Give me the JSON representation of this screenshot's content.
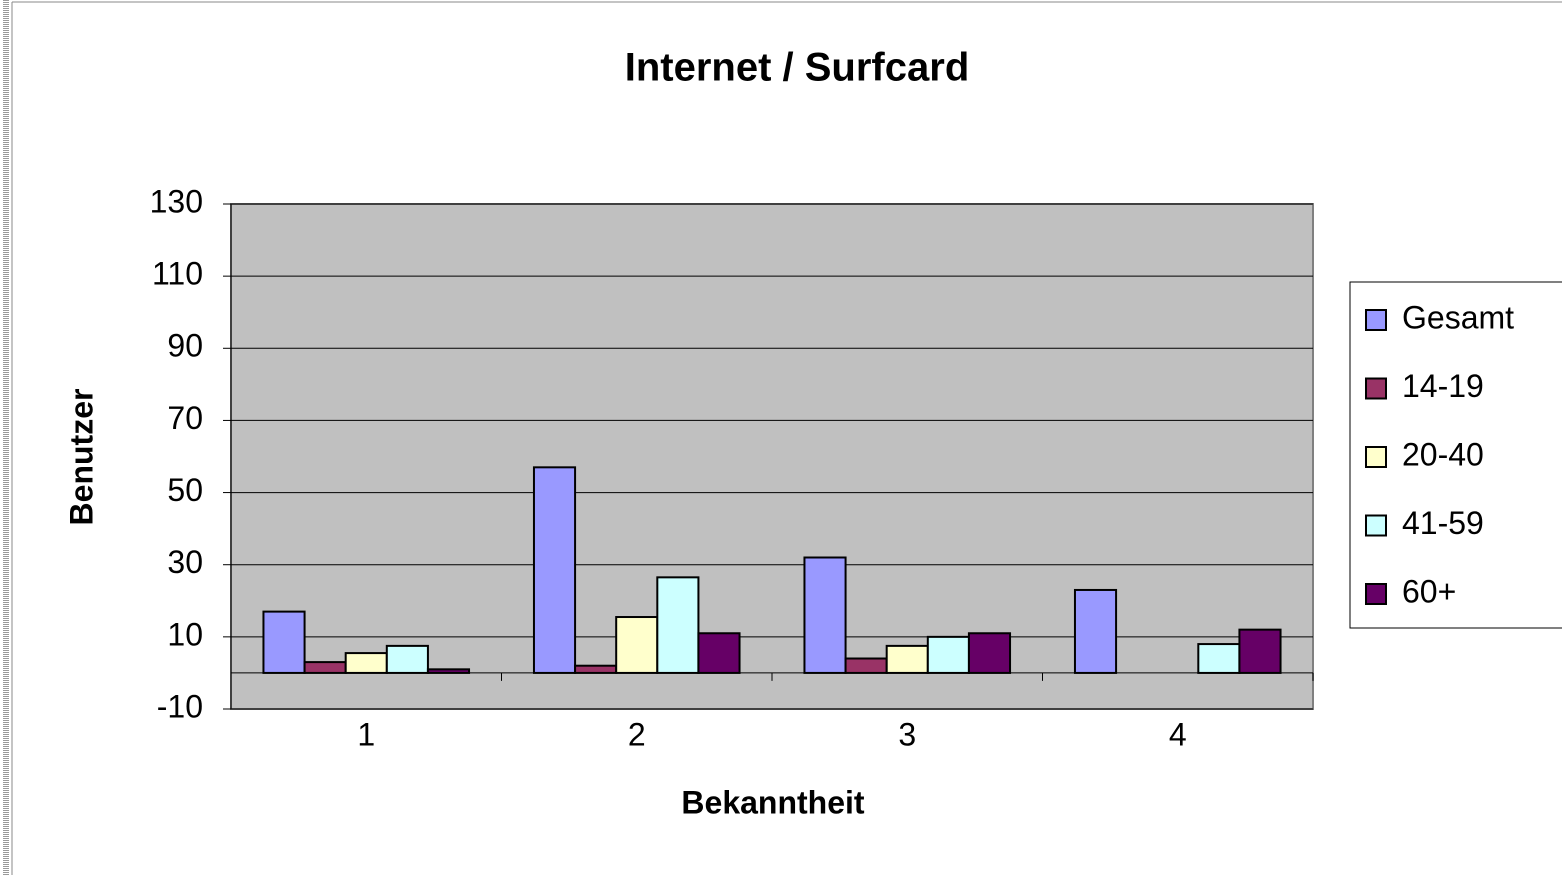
{
  "chart_data": {
    "type": "bar",
    "title": "Internet / Surfcard",
    "x_label": "Bekanntheit",
    "y_label": "Benutzer",
    "categories": [
      "1",
      "2",
      "3",
      "4"
    ],
    "series": [
      {
        "name": "Gesamt",
        "color": "#9999ff",
        "values": [
          17,
          57,
          32,
          23
        ]
      },
      {
        "name": "14-19",
        "color": "#993366",
        "values": [
          3,
          2,
          4,
          0
        ]
      },
      {
        "name": "20-40",
        "color": "#ffffcc",
        "values": [
          5.5,
          15.5,
          7.5,
          0
        ]
      },
      {
        "name": "41-59",
        "color": "#ccffff",
        "values": [
          7.5,
          26.5,
          10,
          8
        ]
      },
      {
        "name": "60+",
        "color": "#660066",
        "values": [
          1,
          11,
          11,
          12
        ]
      }
    ],
    "ylim": [
      -10,
      130
    ],
    "yticks": [
      -10,
      10,
      30,
      50,
      70,
      90,
      110,
      130
    ],
    "grid": true,
    "legend": "right",
    "plot_background": "#c0c0c0"
  }
}
